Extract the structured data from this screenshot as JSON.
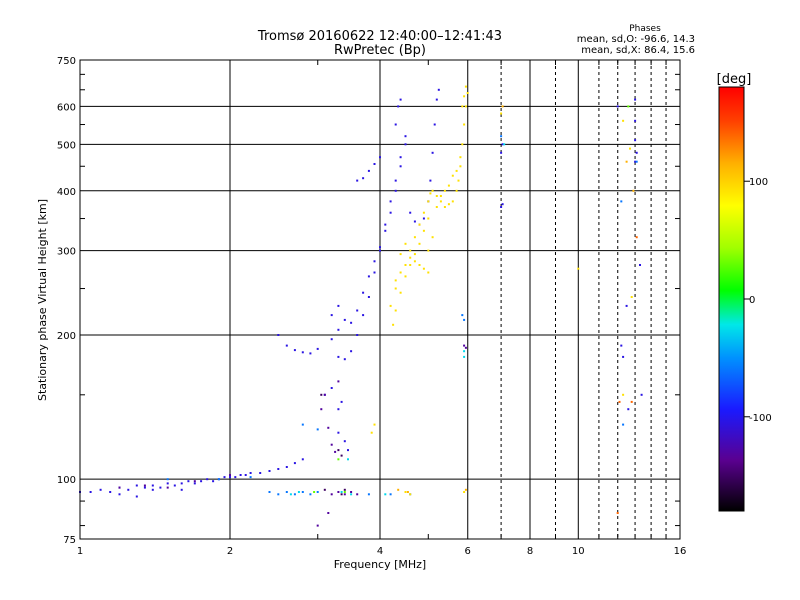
{
  "chart_data": {
    "type": "scatter",
    "title": "Tromsø 20160622 12:40:00–12:41:43",
    "subtitle": "RwPretec (Bp)",
    "xlabel": "Frequency [MHz]",
    "ylabel": "Stationary phase Virtual Height [km]",
    "x_scale": "log",
    "y_scale": "log",
    "xlim": [
      1,
      16
    ],
    "ylim": [
      75,
      750
    ],
    "x_ticks": [
      "1",
      "2",
      "4",
      "6",
      "8",
      "10",
      "16"
    ],
    "x_tick_values": [
      1,
      2,
      4,
      6,
      8,
      10,
      16
    ],
    "y_ticks": [
      "75",
      "100",
      "200",
      "300",
      "400",
      "500",
      "600",
      "750"
    ],
    "y_tick_values": [
      75,
      100,
      200,
      300,
      400,
      500,
      600,
      750
    ],
    "grid": true,
    "annotation": {
      "heading": "Phases",
      "line1": "mean, sd,O: -96.6, 14.3",
      "line2": "mean, sd,X:  86.4, 15.6"
    },
    "colorbar": {
      "label": "[deg]",
      "range": [
        -180,
        180
      ],
      "ticks": [
        "100",
        "0",
        "-100"
      ],
      "tick_values": [
        100,
        0,
        -100
      ],
      "colormap": "rainbow"
    },
    "series": [
      {
        "phase_deg": -105,
        "points": [
          [
            1.0,
            94
          ],
          [
            1.05,
            94
          ],
          [
            1.1,
            95
          ],
          [
            1.15,
            94
          ],
          [
            1.2,
            96
          ],
          [
            1.25,
            95
          ],
          [
            1.3,
            97
          ],
          [
            1.35,
            96
          ],
          [
            1.4,
            97
          ],
          [
            1.45,
            96
          ],
          [
            1.5,
            98
          ],
          [
            1.55,
            97
          ],
          [
            1.6,
            98
          ],
          [
            1.65,
            99
          ],
          [
            1.7,
            98
          ],
          [
            1.75,
            99
          ],
          [
            1.8,
            100
          ],
          [
            1.85,
            99
          ],
          [
            1.9,
            100
          ],
          [
            1.95,
            101
          ],
          [
            2.0,
            101
          ],
          [
            2.05,
            101
          ],
          [
            2.1,
            102
          ],
          [
            2.15,
            102
          ],
          [
            2.2,
            103
          ],
          [
            2.3,
            103
          ],
          [
            2.4,
            104
          ],
          [
            2.5,
            105
          ],
          [
            2.6,
            106
          ],
          [
            2.7,
            108
          ],
          [
            2.8,
            110
          ],
          [
            2.5,
            200
          ],
          [
            2.6,
            190
          ],
          [
            2.7,
            186
          ],
          [
            2.8,
            184
          ],
          [
            2.9,
            183
          ],
          [
            3.0,
            187
          ],
          [
            3.2,
            196
          ],
          [
            3.3,
            205
          ],
          [
            3.5,
            212
          ],
          [
            3.6,
            225
          ],
          [
            3.7,
            245
          ],
          [
            3.8,
            265
          ],
          [
            3.9,
            285
          ],
          [
            4.0,
            305
          ],
          [
            4.1,
            330
          ],
          [
            4.2,
            360
          ],
          [
            4.3,
            400
          ],
          [
            4.4,
            450
          ],
          [
            4.5,
            500
          ],
          [
            3.3,
            180
          ],
          [
            3.4,
            178
          ],
          [
            3.5,
            185
          ],
          [
            3.6,
            200
          ],
          [
            3.7,
            220
          ],
          [
            3.8,
            240
          ],
          [
            3.9,
            270
          ],
          [
            4.0,
            300
          ],
          [
            4.1,
            340
          ],
          [
            4.2,
            380
          ],
          [
            4.3,
            420
          ],
          [
            4.4,
            470
          ],
          [
            4.5,
            520
          ],
          [
            4.6,
            360
          ],
          [
            4.7,
            345
          ],
          [
            4.8,
            340
          ],
          [
            4.9,
            350
          ],
          [
            5.0,
            380
          ],
          [
            5.05,
            420
          ],
          [
            5.1,
            480
          ],
          [
            5.15,
            550
          ],
          [
            5.2,
            620
          ],
          [
            5.25,
            650
          ],
          [
            4.3,
            550
          ],
          [
            4.35,
            600
          ],
          [
            4.4,
            620
          ],
          [
            3.6,
            420
          ],
          [
            3.7,
            425
          ],
          [
            3.8,
            440
          ],
          [
            3.9,
            455
          ],
          [
            4.0,
            470
          ],
          [
            3.2,
            220
          ],
          [
            3.3,
            230
          ],
          [
            3.4,
            215
          ],
          [
            3.3,
            140
          ],
          [
            3.35,
            145
          ],
          [
            3.1,
            150
          ],
          [
            3.2,
            155
          ],
          [
            3.3,
            125
          ],
          [
            3.4,
            120
          ],
          [
            3.45,
            115
          ],
          [
            1.2,
            93
          ],
          [
            1.3,
            92
          ],
          [
            1.4,
            95
          ],
          [
            1.6,
            95
          ],
          [
            7.0,
            370
          ],
          [
            7.05,
            375
          ],
          [
            7.0,
            480
          ],
          [
            7.05,
            500
          ],
          [
            12.0,
            600
          ],
          [
            13.0,
            620
          ],
          [
            13.0,
            560
          ],
          [
            13.0,
            510
          ],
          [
            13.0,
            460
          ],
          [
            13.1,
            480
          ],
          [
            13.3,
            280
          ],
          [
            12.5,
            230
          ],
          [
            12.2,
            190
          ],
          [
            12.3,
            180
          ],
          [
            13.4,
            150
          ],
          [
            12.6,
            140
          ]
        ]
      },
      {
        "phase_deg": -130,
        "points": [
          [
            3.05,
            140
          ],
          [
            3.1,
            150
          ],
          [
            3.15,
            128
          ],
          [
            3.2,
            118
          ],
          [
            3.25,
            114
          ],
          [
            3.3,
            160
          ],
          [
            3.2,
            93
          ],
          [
            3.3,
            94
          ],
          [
            3.4,
            93
          ],
          [
            3.5,
            94
          ],
          [
            3.6,
            93
          ],
          [
            3.0,
            80
          ],
          [
            3.15,
            85
          ],
          [
            1.2,
            96
          ],
          [
            1.35,
            97
          ],
          [
            1.5,
            96
          ],
          [
            1.7,
            99
          ],
          [
            2.0,
            102
          ],
          [
            5.9,
            190
          ],
          [
            5.95,
            188
          ]
        ]
      },
      {
        "phase_deg": -60,
        "points": [
          [
            2.4,
            94
          ],
          [
            2.5,
            93
          ],
          [
            2.6,
            94
          ],
          [
            2.7,
            93
          ],
          [
            2.8,
            94
          ],
          [
            2.9,
            93
          ],
          [
            3.0,
            94
          ],
          [
            3.8,
            93
          ],
          [
            4.2,
            93
          ],
          [
            4.6,
            93
          ],
          [
            5.9,
            215
          ],
          [
            5.85,
            220
          ],
          [
            7.0,
            520
          ],
          [
            12.2,
            380
          ],
          [
            12.3,
            130
          ],
          [
            13.1,
            460
          ],
          [
            2.8,
            130
          ],
          [
            3.0,
            127
          ],
          [
            1.5,
            100
          ],
          [
            1.9,
            100
          ],
          [
            2.2,
            101
          ]
        ]
      },
      {
        "phase_deg": -25,
        "points": [
          [
            2.65,
            93
          ],
          [
            2.75,
            94
          ],
          [
            3.35,
            94
          ],
          [
            3.5,
            93
          ],
          [
            5.9,
            185
          ],
          [
            5.9,
            180
          ],
          [
            3.45,
            110
          ],
          [
            4.1,
            93
          ],
          [
            7.1,
            500
          ]
        ]
      },
      {
        "phase_deg": 25,
        "points": [
          [
            2.95,
            94
          ],
          [
            3.3,
            110
          ],
          [
            3.4,
            94
          ],
          [
            12.6,
            600
          ]
        ]
      },
      {
        "phase_deg": 95,
        "points": [
          [
            4.2,
            230
          ],
          [
            4.3,
            250
          ],
          [
            4.4,
            270
          ],
          [
            4.5,
            280
          ],
          [
            4.6,
            300
          ],
          [
            4.7,
            320
          ],
          [
            4.8,
            340
          ],
          [
            4.9,
            360
          ],
          [
            5.0,
            380
          ],
          [
            5.05,
            395
          ],
          [
            5.1,
            400
          ],
          [
            5.2,
            390
          ],
          [
            5.3,
            380
          ],
          [
            5.4,
            370
          ],
          [
            5.5,
            375
          ],
          [
            5.6,
            380
          ],
          [
            5.7,
            400
          ],
          [
            5.75,
            420
          ],
          [
            5.8,
            450
          ],
          [
            5.85,
            500
          ],
          [
            5.9,
            550
          ],
          [
            5.95,
            600
          ],
          [
            6.0,
            640
          ],
          [
            4.25,
            210
          ],
          [
            4.3,
            225
          ],
          [
            4.4,
            245
          ],
          [
            4.5,
            265
          ],
          [
            4.6,
            280
          ],
          [
            4.7,
            295
          ],
          [
            4.8,
            310
          ],
          [
            4.9,
            330
          ],
          [
            5.0,
            350
          ],
          [
            4.4,
            295
          ],
          [
            4.5,
            310
          ],
          [
            4.6,
            290
          ],
          [
            4.7,
            285
          ],
          [
            4.8,
            280
          ],
          [
            4.9,
            275
          ],
          [
            5.0,
            270
          ],
          [
            5.0,
            300
          ],
          [
            5.1,
            320
          ],
          [
            5.2,
            370
          ],
          [
            5.3,
            390
          ],
          [
            5.4,
            400
          ],
          [
            5.5,
            410
          ],
          [
            5.6,
            430
          ],
          [
            5.7,
            440
          ],
          [
            5.8,
            470
          ],
          [
            5.85,
            600
          ],
          [
            5.9,
            630
          ],
          [
            5.95,
            660
          ],
          [
            4.3,
            260
          ],
          [
            3.85,
            125
          ],
          [
            3.9,
            130
          ],
          [
            4.5,
            94
          ],
          [
            4.6,
            93
          ],
          [
            5.9,
            94
          ],
          [
            7.0,
            580
          ],
          [
            10.0,
            275
          ],
          [
            12.7,
            490
          ],
          [
            12.3,
            150
          ],
          [
            12.8,
            240
          ],
          [
            12.3,
            560
          ]
        ]
      },
      {
        "phase_deg": 120,
        "points": [
          [
            4.35,
            95
          ],
          [
            4.55,
            94
          ],
          [
            5.95,
            95
          ],
          [
            7.05,
            600
          ],
          [
            12.9,
            400
          ],
          [
            12.5,
            460
          ]
        ]
      },
      {
        "phase_deg": 140,
        "points": [
          [
            12.1,
            145
          ],
          [
            12.0,
            85
          ],
          [
            13.1,
            320
          ],
          [
            12.8,
            145
          ]
        ]
      },
      {
        "phase_deg": -150,
        "points": [
          [
            3.1,
            95
          ],
          [
            3.35,
            93
          ],
          [
            3.4,
            95
          ],
          [
            3.05,
            150
          ],
          [
            3.3,
            115
          ],
          [
            3.35,
            112
          ]
        ]
      }
    ]
  }
}
